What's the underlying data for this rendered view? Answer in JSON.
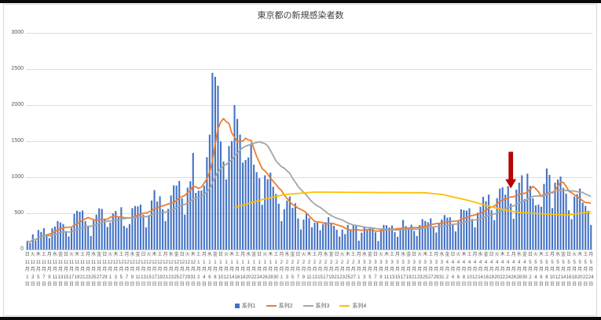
{
  "chart": {
    "title": "東京都の新規感染者数",
    "background": "#FFFFFF",
    "border_color": "#D9D9D9",
    "grid_color": "#DCDCDC",
    "axis_line_color": "#BFBFBF",
    "axis_text_color": "#595959",
    "y_ticks": [
      0,
      500,
      1000,
      1500,
      2000,
      2500,
      3000
    ],
    "legend": [
      {
        "label": "系列1",
        "marker": "bar",
        "color": "#4472C4"
      },
      {
        "label": "系列2",
        "marker": "line",
        "color": "#ED7D31"
      },
      {
        "label": "系列3",
        "marker": "line",
        "color": "#A5A5A5"
      },
      {
        "label": "系列4",
        "marker": "line",
        "color": "#FFC000"
      }
    ]
  },
  "chart_data": {
    "type": "bar",
    "title": "東京都の新規感染者数",
    "ylim": [
      0,
      3000
    ],
    "grid": true,
    "legend_position": "bottom",
    "x_label_step": 2,
    "weekday_cycle": [
      "日",
      "月",
      "火",
      "水",
      "木",
      "金",
      "土"
    ],
    "date_spans": [
      {
        "month": 11,
        "from": 1,
        "to": 30
      },
      {
        "month": 12,
        "from": 1,
        "to": 31
      },
      {
        "month": 1,
        "from": 1,
        "to": 31
      },
      {
        "month": 2,
        "from": 1,
        "to": 28
      },
      {
        "month": 3,
        "from": 1,
        "to": 31
      },
      {
        "month": 4,
        "from": 1,
        "to": 30
      },
      {
        "month": 5,
        "from": 1,
        "to": 24
      }
    ],
    "series": [
      {
        "name": "系列1",
        "type": "bar",
        "color": "#4472C4",
        "values": [
          116,
          87,
          209,
          122,
          269,
          242,
          294,
          189,
          157,
          293,
          317,
          393,
          374,
          352,
          255,
          180,
          298,
          493,
          534,
          522,
          539,
          391,
          314,
          186,
          401,
          481,
          570,
          561,
          418,
          311,
          372,
          500,
          533,
          449,
          584,
          327,
          299,
          352,
          572,
          602,
          595,
          621,
          480,
          305,
          460,
          678,
          822,
          664,
          736,
          556,
          392,
          563,
          748,
          888,
          884,
          949,
          708,
          481,
          856,
          944,
          1337,
          783,
          814,
          816,
          884,
          1278,
          1591,
          2447,
          2392,
          2268,
          1494,
          1219,
          970,
          1433,
          1502,
          2001,
          1809,
          1592,
          1204,
          1240,
          1274,
          1471,
          1175,
          1070,
          986,
          618,
          1026,
          973,
          1064,
          868,
          769,
          633,
          393,
          556,
          676,
          734,
          577,
          639,
          429,
          276,
          412,
          491,
          434,
          307,
          369,
          371,
          266,
          350,
          378,
          445,
          353,
          327,
          272,
          178,
          275,
          213,
          340,
          270,
          337,
          329,
          121,
          232,
          316,
          279,
          301,
          293,
          237,
          116,
          290,
          340,
          335,
          304,
          330,
          239,
          175,
          300,
          409,
          323,
          303,
          342,
          256,
          187,
          337,
          420,
          394,
          376,
          430,
          313,
          234,
          364,
          414,
          475,
          440,
          446,
          355,
          249,
          399,
          555,
          545,
          537,
          570,
          421,
          306,
          510,
          591,
          729,
          667,
          759,
          543,
          405,
          711,
          843,
          861,
          759,
          876,
          635,
          425,
          828,
          925,
          1027,
          698,
          1050,
          879,
          708,
          609,
          621,
          591,
          907,
          1121,
          1032,
          573,
          925,
          969,
          1010,
          854,
          772,
          542,
          419,
          732,
          766,
          843,
          649,
          602,
          535,
          340
        ]
      },
      {
        "name": "系列2",
        "type": "line",
        "color": "#ED7D31",
        "derivation": "moving_average_of_series1",
        "window": 7
      },
      {
        "name": "系列3",
        "type": "line",
        "color": "#A5A5A5",
        "derivation": "moving_average_of_series1",
        "window": 21
      },
      {
        "name": "系列4",
        "type": "line",
        "color": "#FFC000",
        "points": [
          [
            75,
            580
          ],
          [
            85,
            690
          ],
          [
            93,
            760
          ],
          [
            104,
            795
          ],
          [
            144,
            785
          ],
          [
            150,
            762
          ],
          [
            159,
            685
          ],
          [
            166,
            610
          ],
          [
            173,
            545
          ],
          [
            178,
            512
          ],
          [
            187,
            490
          ],
          [
            196,
            478
          ],
          [
            204,
            520
          ]
        ]
      }
    ],
    "annotation": {
      "type": "down-arrow",
      "color": "#C00000",
      "index": 175,
      "from_value": 1350,
      "to_value": 850
    }
  }
}
